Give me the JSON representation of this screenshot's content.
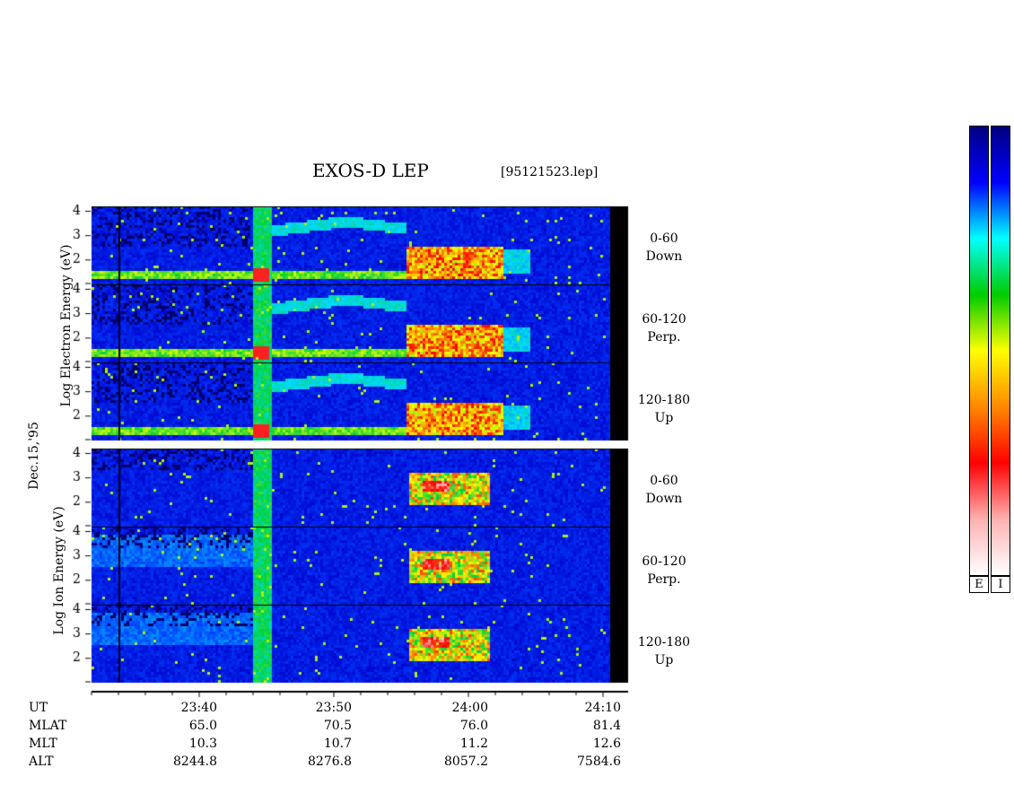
{
  "header": {
    "title": "EXOS-D LEP",
    "file": "[95121523.lep]"
  },
  "y_labels": {
    "electron_axis": "Log  Electron  Energy (eV)",
    "ion_axis": "Log  Ion  Energy (eV)",
    "date": "Dec.15,'95"
  },
  "panels": [
    {
      "group": "electron",
      "angle": "0-60",
      "dir": "Down"
    },
    {
      "group": "electron",
      "angle": "60-120",
      "dir": "Perp."
    },
    {
      "group": "electron",
      "angle": "120-180",
      "dir": "Up"
    },
    {
      "group": "ion",
      "angle": "0-60",
      "dir": "Down"
    },
    {
      "group": "ion",
      "angle": "60-120",
      "dir": "Perp."
    },
    {
      "group": "ion",
      "angle": "120-180",
      "dir": "Up"
    }
  ],
  "ephemeris": {
    "row_labels": [
      "UT",
      "MLAT",
      "MLT",
      "ALT"
    ],
    "columns": [
      {
        "UT": "23:40",
        "MLAT": "65.0",
        "MLT": "10.3",
        "ALT": "8244.8"
      },
      {
        "UT": "23:50",
        "MLAT": "70.5",
        "MLT": "10.7",
        "ALT": "8276.8"
      },
      {
        "UT": "24:00",
        "MLAT": "76.0",
        "MLT": "11.2",
        "ALT": "8057.2"
      },
      {
        "UT": "24:10",
        "MLAT": "81.4",
        "MLT": "12.6",
        "ALT": "7584.6"
      }
    ]
  },
  "colorbar": {
    "labels": [
      "E",
      "I"
    ],
    "colors": [
      "#ffffff",
      "#ffb0b0",
      "#ff0000",
      "#ff8800",
      "#ffff00",
      "#00cc00",
      "#00ffff",
      "#0000ff",
      "#000080"
    ]
  },
  "chart_data": {
    "type": "heatmap",
    "title": "EXOS-D LEP",
    "x_axis": {
      "label": "UT",
      "ticks": [
        "23:40",
        "23:50",
        "24:00",
        "24:10"
      ]
    },
    "y_axis": {
      "label": "Log Energy (eV)",
      "ticks": [
        2,
        3,
        4
      ],
      "range": [
        1,
        4.2
      ]
    },
    "panels": [
      {
        "species": "Electron",
        "pitch_angle": "0-60",
        "direction": "Down"
      },
      {
        "species": "Electron",
        "pitch_angle": "60-120",
        "direction": "Perp."
      },
      {
        "species": "Electron",
        "pitch_angle": "120-180",
        "direction": "Up"
      },
      {
        "species": "Ion",
        "pitch_angle": "0-60",
        "direction": "Down"
      },
      {
        "species": "Ion",
        "pitch_angle": "60-120",
        "direction": "Perp."
      },
      {
        "species": "Ion",
        "pitch_angle": "120-180",
        "direction": "Up"
      }
    ],
    "colorbar_labels": [
      "E",
      "I"
    ]
  }
}
